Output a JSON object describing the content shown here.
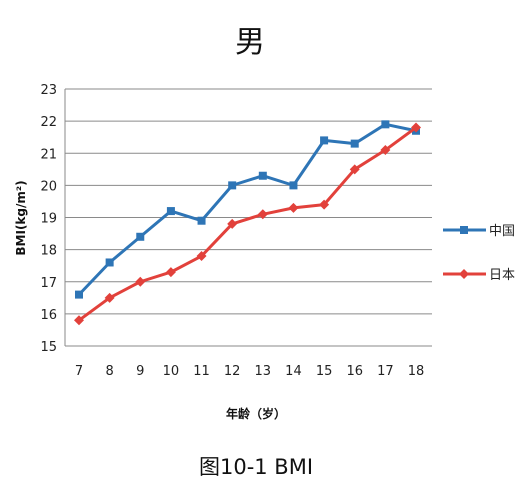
{
  "chart_data": {
    "type": "line",
    "title": "男",
    "xlabel": "年龄（岁）",
    "ylabel": "BMI(kg/m²)",
    "caption": "图10-1  BMI",
    "x": [
      7,
      8,
      9,
      10,
      11,
      12,
      13,
      14,
      15,
      16,
      17,
      18
    ],
    "ylim": [
      15,
      23
    ],
    "yticks": [
      15,
      16,
      17,
      18,
      19,
      20,
      21,
      22,
      23
    ],
    "grid": true,
    "legend_position": "right",
    "series": [
      {
        "name": "中国",
        "color": "#2e75b6",
        "marker": "square",
        "values": [
          16.6,
          17.6,
          18.4,
          19.2,
          18.9,
          20.0,
          20.3,
          20.0,
          21.4,
          21.3,
          21.9,
          21.7
        ]
      },
      {
        "name": "日本",
        "color": "#e2413b",
        "marker": "diamond",
        "values": [
          15.8,
          16.5,
          17.0,
          17.3,
          17.8,
          18.8,
          19.1,
          19.3,
          19.4,
          20.5,
          21.1,
          21.8
        ]
      }
    ]
  }
}
